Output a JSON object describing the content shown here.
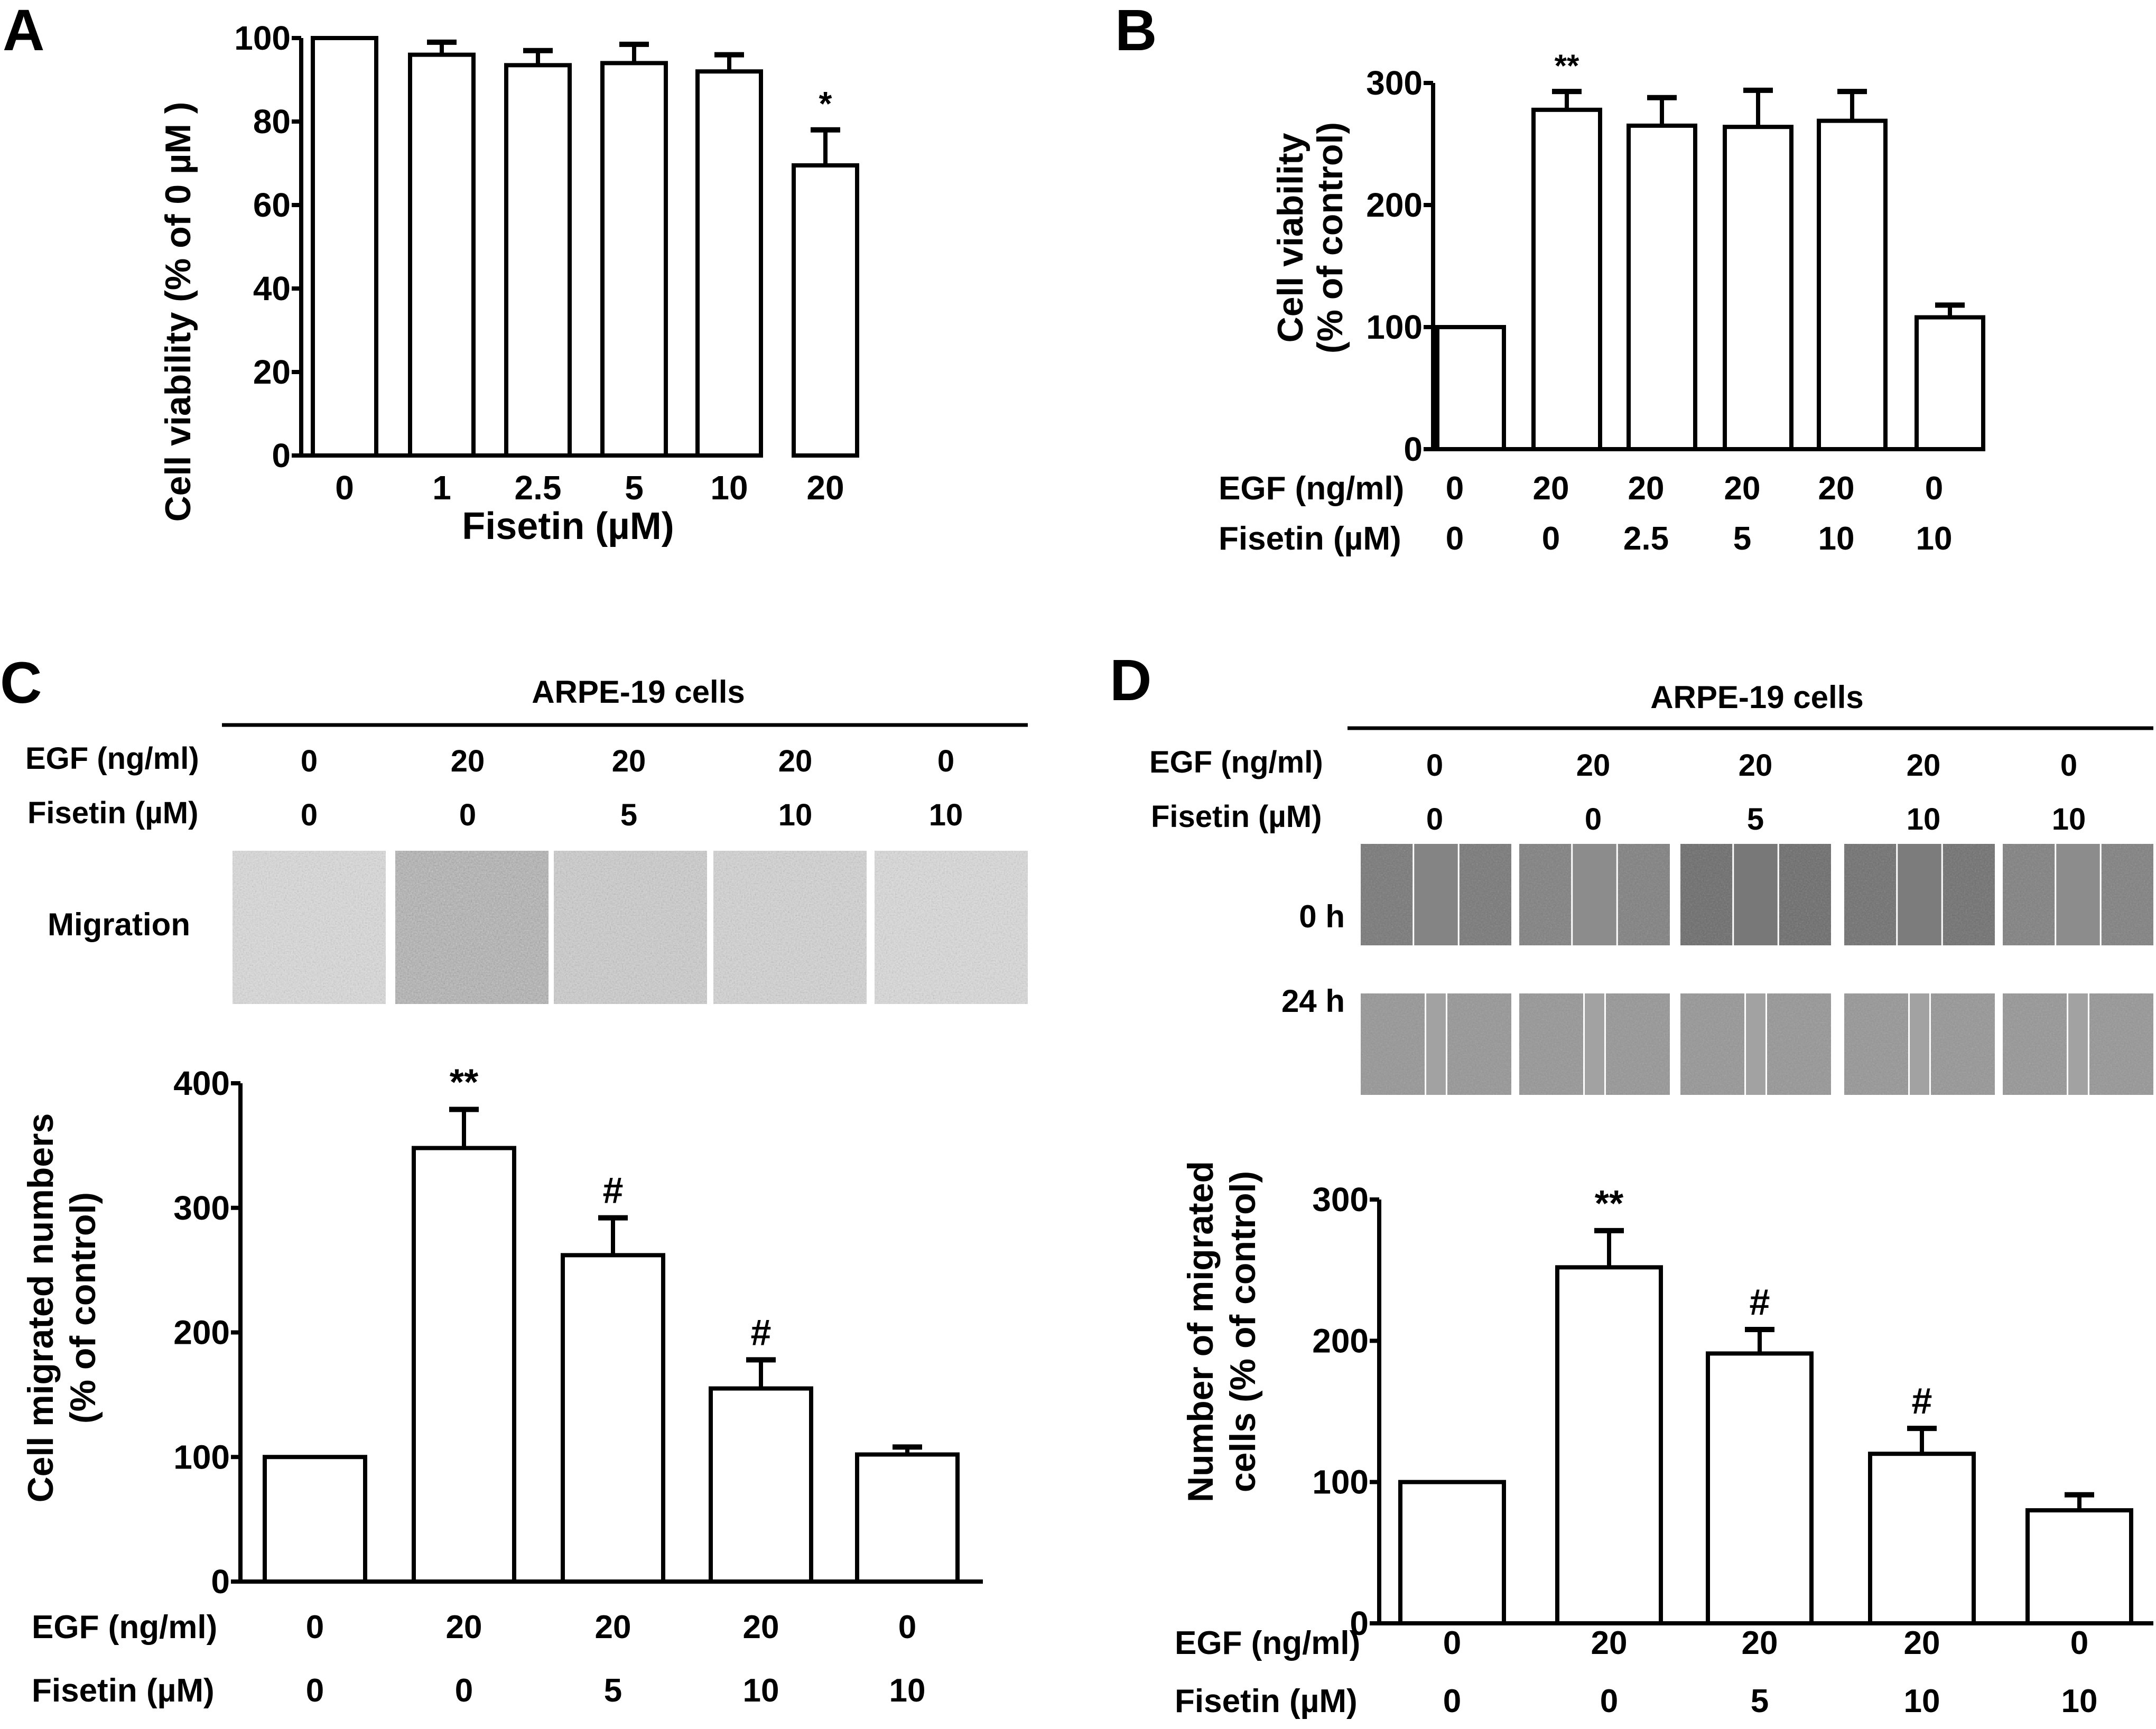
{
  "chart_data": [
    {
      "panel": "A",
      "type": "bar",
      "title": "",
      "xlabel": "Fisetin (µM)",
      "ylabel": "Cell viability (% of 0 µM )",
      "categories": [
        "0",
        "1",
        "2.5",
        "5",
        "10",
        "20"
      ],
      "values": [
        100,
        96,
        93.5,
        94,
        92,
        69.5
      ],
      "error_upper": [
        100,
        99,
        97,
        98.5,
        96,
        78
      ],
      "annotations": [
        "",
        "",
        "",
        "",
        "",
        "*"
      ],
      "ylim": [
        0,
        100
      ],
      "yticks": [
        "0",
        "20",
        "40",
        "60",
        "80",
        "100"
      ],
      "grid": false
    },
    {
      "panel": "B",
      "type": "bar",
      "title": "",
      "ylabel": "Cell  viability\n(% of control)",
      "rows": [
        {
          "label": "EGF (ng/ml)",
          "values": [
            "0",
            "20",
            "20",
            "20",
            "20",
            "0"
          ]
        },
        {
          "label": "Fisetin (µM)",
          "values": [
            "0",
            "0",
            "2.5",
            "5",
            "10",
            "10"
          ]
        }
      ],
      "values": [
        100,
        278,
        265,
        264,
        269,
        108
      ],
      "error_upper": [
        100,
        293,
        288,
        294,
        293,
        118
      ],
      "annotations": [
        "",
        "**",
        "",
        "",
        "",
        ""
      ],
      "ylim": [
        0,
        300
      ],
      "yticks": [
        "0",
        "100",
        "200",
        "300"
      ],
      "grid": false
    },
    {
      "panel": "C",
      "type": "bar",
      "title": "",
      "ylabel": "Cell migrated numbers\n(% of control)",
      "rows": [
        {
          "label": "EGF (ng/ml)",
          "values": [
            "0",
            "20",
            "20",
            "20",
            "0"
          ]
        },
        {
          "label": "Fisetin (µM)",
          "values": [
            "0",
            "0",
            "5",
            "10",
            "10"
          ]
        }
      ],
      "values": [
        100,
        348,
        262,
        155,
        102
      ],
      "error_upper": [
        100,
        379,
        292,
        178,
        108
      ],
      "annotations": [
        "",
        "**",
        "#",
        "#",
        ""
      ],
      "ylim": [
        0,
        400
      ],
      "yticks": [
        "0",
        "100",
        "200",
        "300",
        "400"
      ],
      "grid": false
    },
    {
      "panel": "D",
      "type": "bar",
      "title": "",
      "ylabel": "Number of migrated\ncells (% of control)",
      "rows": [
        {
          "label": "EGF (ng/ml)",
          "values": [
            "0",
            "20",
            "20",
            "20",
            "0"
          ]
        },
        {
          "label": "Fisetin (µM)",
          "values": [
            "0",
            "0",
            "5",
            "10",
            "10"
          ]
        }
      ],
      "values": [
        100,
        252,
        191,
        120,
        80
      ],
      "error_upper": [
        100,
        278,
        208,
        138,
        91
      ],
      "annotations": [
        "",
        "**",
        "#",
        "#",
        ""
      ],
      "ylim": [
        0,
        300
      ],
      "yticks": [
        "0",
        "100",
        "200",
        "300"
      ],
      "grid": false
    }
  ],
  "panel_c_images": {
    "header": "ARPE-19 cells",
    "egf_label": "EGF (ng/ml)",
    "fisetin_label": "Fisetin (µM)",
    "egf": [
      "0",
      "20",
      "20",
      "20",
      "0"
    ],
    "fisetin": [
      "0",
      "0",
      "5",
      "10",
      "10"
    ],
    "row_label": "Migration",
    "darkness": [
      0.25,
      0.55,
      0.35,
      0.3,
      0.25
    ]
  },
  "panel_d_images": {
    "header": "ARPE-19 cells",
    "egf_label": "EGF (ng/ml)",
    "fisetin_label": "Fisetin (µM)",
    "egf": [
      "0",
      "20",
      "20",
      "20",
      "0"
    ],
    "fisetin": [
      "0",
      "0",
      "5",
      "10",
      "10"
    ],
    "row_labels": [
      "0 h",
      "24 h"
    ]
  },
  "panel_letters": [
    "A",
    "B",
    "C",
    "D"
  ]
}
